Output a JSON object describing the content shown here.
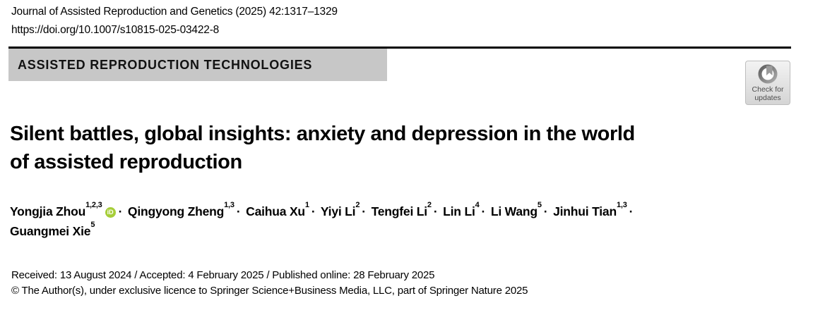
{
  "page": {
    "journal_line": "Journal of Assisted Reproduction and Genetics (2025) 42:1317–1329",
    "doi": "https://doi.org/10.1007/s10815-025-03422-8",
    "section_banner": "ASSISTED REPRODUCTION TECHNOLOGIES",
    "check_updates": {
      "line1": "Check for",
      "line2": "updates"
    },
    "title_lines": [
      "Silent battles, global insights: anxiety and depression in the world",
      "of assisted reproduction"
    ],
    "authors": {
      "separator": "·",
      "orcid_label": "iD",
      "list": [
        {
          "name": "Yongjia Zhou",
          "sup": "1,2,3",
          "orcid": true
        },
        {
          "name": "Qingyong Zheng",
          "sup": "1,3"
        },
        {
          "name": "Caihua Xu",
          "sup": "1"
        },
        {
          "name": "Yiyi Li",
          "sup": "2"
        },
        {
          "name": "Tengfei Li",
          "sup": "2"
        },
        {
          "name": "Lin Li",
          "sup": "4"
        },
        {
          "name": "Li Wang",
          "sup": "5"
        },
        {
          "name": "Jinhui Tian",
          "sup": "1,3"
        },
        {
          "name": "Guangmei Xie",
          "sup": "5"
        }
      ]
    },
    "history_line": "Received: 13 August 2024 / Accepted: 4 February 2025 / Published online: 28 February 2025",
    "copyright_line": "© The Author(s), under exclusive licence to Springer Science+Business Media, LLC, part of Springer Nature 2025",
    "colors": {
      "banner_bg": "#c7c7c7",
      "orcid_green": "#A6CE39",
      "rule": "#000000"
    }
  }
}
